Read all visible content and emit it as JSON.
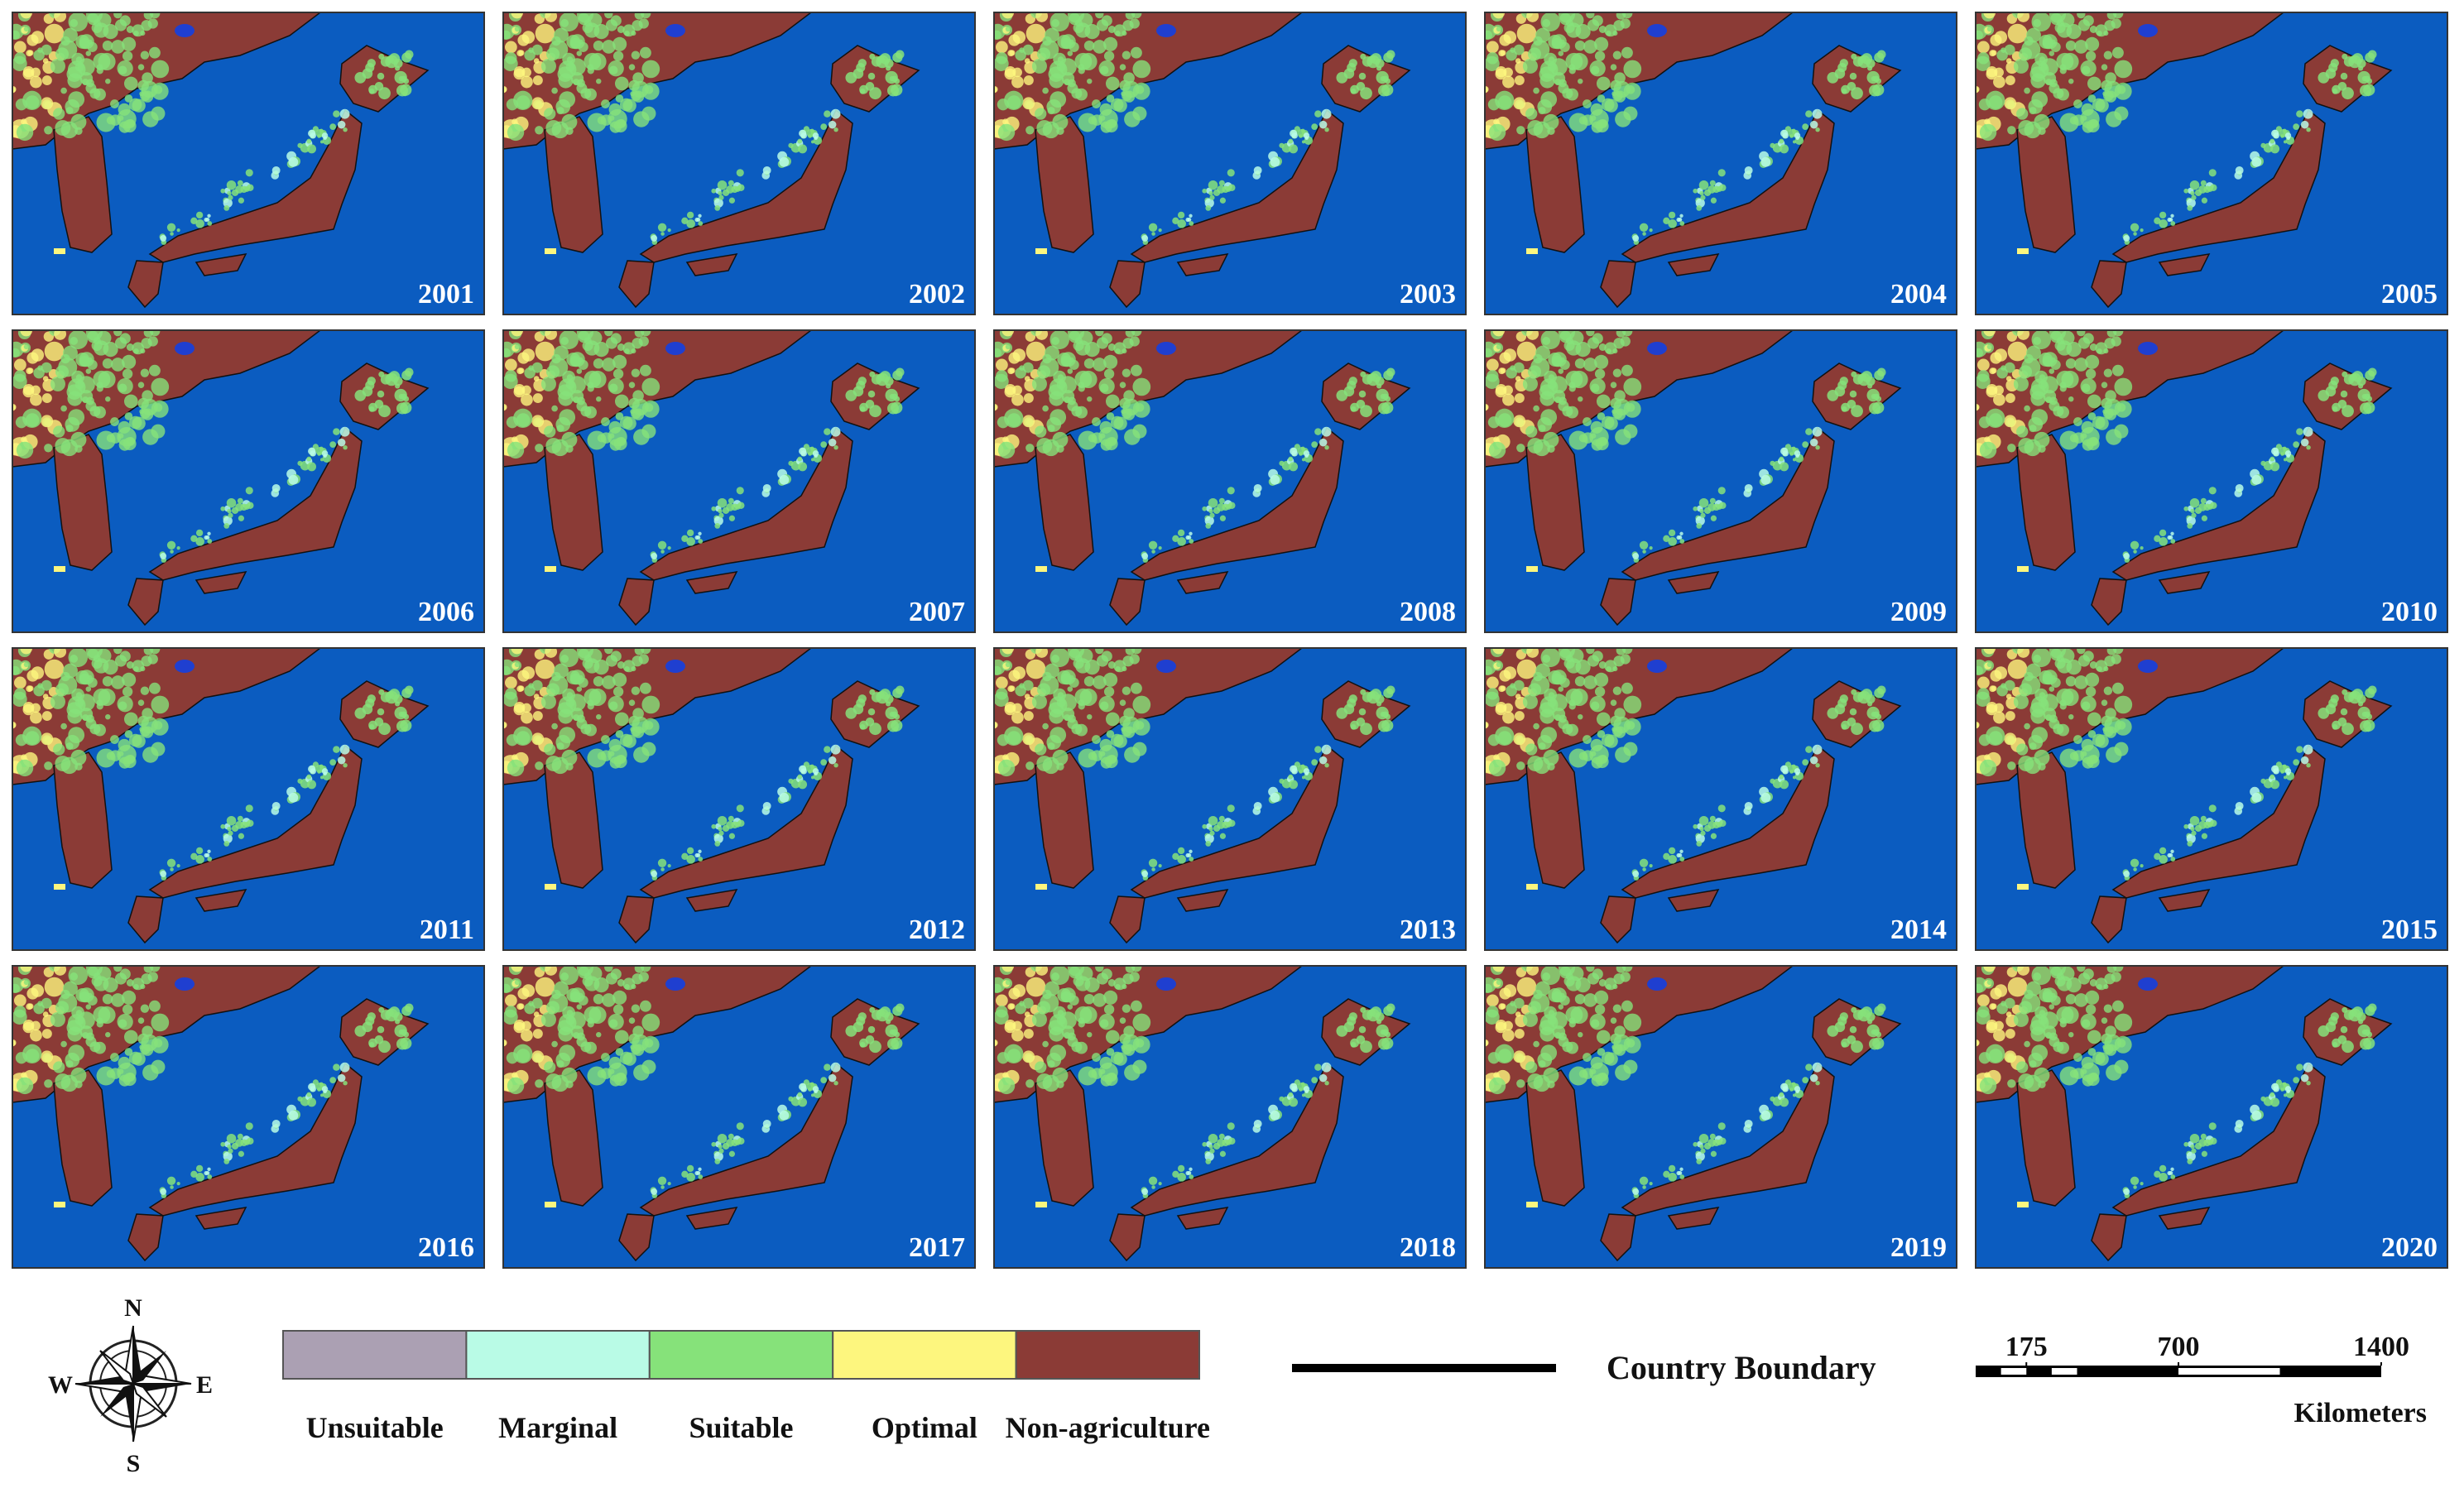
{
  "panels": [
    {
      "year": "2001"
    },
    {
      "year": "2002"
    },
    {
      "year": "2003"
    },
    {
      "year": "2004"
    },
    {
      "year": "2005"
    },
    {
      "year": "2006"
    },
    {
      "year": "2007"
    },
    {
      "year": "2008"
    },
    {
      "year": "2009"
    },
    {
      "year": "2010"
    },
    {
      "year": "2011"
    },
    {
      "year": "2012"
    },
    {
      "year": "2013"
    },
    {
      "year": "2014"
    },
    {
      "year": "2015"
    },
    {
      "year": "2016"
    },
    {
      "year": "2017"
    },
    {
      "year": "2018"
    },
    {
      "year": "2019"
    },
    {
      "year": "2020"
    }
  ],
  "legend": {
    "classes": [
      {
        "label": "Unsuitable",
        "color": "#aba0b3"
      },
      {
        "label": "Marginal",
        "color": "#b9fbe6"
      },
      {
        "label": "Suitable",
        "color": "#86e27a"
      },
      {
        "label": "Optimal",
        "color": "#fdf67e"
      },
      {
        "label": "Non-agriculture",
        "color": "#8b3b36"
      }
    ]
  },
  "compass": {
    "north": "N",
    "south": "S",
    "east": "E",
    "west": "W"
  },
  "boundary_legend": {
    "label": "Country Boundary"
  },
  "scale_bar": {
    "ticks": [
      175,
      700,
      1400
    ],
    "unit": "Kilometers"
  }
}
